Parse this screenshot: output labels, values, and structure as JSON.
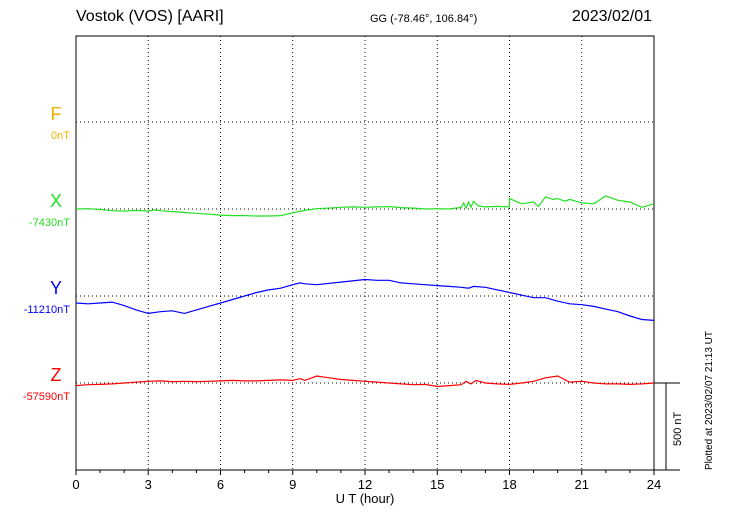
{
  "header": {
    "station": "Vostok (VOS)  [AARI]",
    "coords": "GG (-78.46°, 106.84°)",
    "date": "2023/02/01"
  },
  "footer": {
    "plotted": "Plotted at 2023/02/07 21:13 UT",
    "scale_label": "500 nT"
  },
  "colors": {
    "F": "#f0b000",
    "X": "#22e022",
    "Y": "#0000ff",
    "Z": "#ff0000"
  },
  "chart_data": {
    "type": "line",
    "xlabel": "U T (hour)",
    "xlim": [
      0,
      24
    ],
    "xticks": [
      "0",
      "3",
      "6",
      "9",
      "12",
      "15",
      "18",
      "21",
      "24"
    ],
    "grid": true,
    "scale_bar_nT": 500,
    "series": [
      {
        "name": "F",
        "baseline_label": "0nT",
        "x": [],
        "y": []
      },
      {
        "name": "X",
        "baseline_label": "-7430nT",
        "x": [
          0,
          0.5,
          1,
          1.5,
          2,
          2.5,
          3,
          3.25,
          3.5,
          4,
          4.5,
          5,
          5.5,
          6,
          6.5,
          7,
          7.5,
          8,
          8.5,
          9,
          9.5,
          10,
          10.5,
          11,
          11.5,
          12,
          12.5,
          13,
          13.5,
          14,
          14.5,
          15,
          15.5,
          16,
          16.1,
          16.2,
          16.3,
          16.4,
          16.5,
          16.7,
          17,
          17.5,
          18,
          18,
          18.5,
          19,
          19.2,
          19.5,
          19.8,
          20,
          20.3,
          20.5,
          21,
          21.5,
          22,
          22.5,
          23,
          23.5,
          24
        ],
        "y": [
          0,
          2,
          -3,
          -10,
          -12,
          -8,
          -12,
          -5,
          -10,
          -15,
          -20,
          -25,
          -30,
          -35,
          -38,
          -38,
          -40,
          -40,
          -38,
          -22,
          -8,
          2,
          5,
          10,
          12,
          10,
          12,
          14,
          8,
          5,
          0,
          2,
          0,
          10,
          35,
          5,
          40,
          10,
          45,
          18,
          12,
          15,
          12,
          60,
          30,
          40,
          15,
          70,
          55,
          60,
          45,
          55,
          35,
          30,
          75,
          50,
          40,
          10,
          30
        ]
      },
      {
        "name": "Y",
        "baseline_label": "-11210nT",
        "x": [
          0,
          0.5,
          1,
          1.5,
          2,
          2.5,
          3,
          3.5,
          4,
          4.5,
          5,
          5.5,
          6,
          6.5,
          7,
          7.5,
          8,
          8.5,
          9,
          9.3,
          9.5,
          10,
          11,
          12,
          12.5,
          13,
          13.5,
          14,
          15,
          15.5,
          16,
          16.3,
          16.5,
          17,
          18,
          19,
          19.5,
          20,
          20.5,
          21,
          21.5,
          22,
          22.5,
          23,
          23.5,
          24
        ],
        "y": [
          -40,
          -45,
          -40,
          -35,
          -55,
          -80,
          -100,
          -90,
          -85,
          -100,
          -80,
          -60,
          -40,
          -20,
          0,
          20,
          35,
          45,
          65,
          75,
          70,
          65,
          80,
          95,
          90,
          90,
          75,
          70,
          60,
          55,
          50,
          45,
          55,
          50,
          20,
          -10,
          -10,
          -30,
          -45,
          -50,
          -60,
          -75,
          -90,
          -115,
          -135,
          -140
        ]
      },
      {
        "name": "Z",
        "baseline_label": "-57590nT",
        "x": [
          0,
          0.5,
          1,
          1.5,
          2,
          2.5,
          3,
          3.5,
          4,
          4.5,
          5,
          5.5,
          6,
          6.5,
          7,
          7.5,
          8,
          8.5,
          9,
          9.3,
          9.5,
          10,
          10.5,
          11,
          11.5,
          12,
          12.5,
          13,
          13.5,
          14,
          14.5,
          15,
          15.5,
          16,
          16.2,
          16.4,
          16.6,
          17,
          17.5,
          18,
          18.5,
          19,
          19.5,
          20,
          20.5,
          21,
          21.5,
          22,
          22.5,
          23,
          23.5,
          24
        ],
        "y": [
          -15,
          -10,
          -8,
          -5,
          0,
          5,
          10,
          12,
          8,
          10,
          8,
          10,
          12,
          15,
          12,
          12,
          15,
          18,
          15,
          25,
          15,
          40,
          30,
          20,
          15,
          10,
          5,
          0,
          -5,
          -10,
          -8,
          -20,
          -15,
          -10,
          10,
          -5,
          15,
          0,
          -5,
          -8,
          0,
          10,
          30,
          40,
          5,
          10,
          0,
          -5,
          -5,
          -8,
          -5,
          0
        ]
      }
    ]
  }
}
